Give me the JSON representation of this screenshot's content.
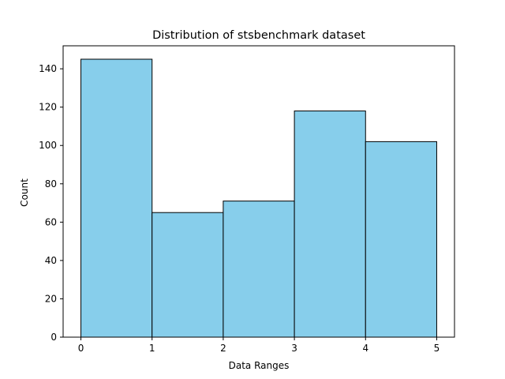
{
  "chart_data": {
    "type": "bar",
    "title": "Distribution of stsbenchmark dataset",
    "xlabel": "Data Ranges",
    "ylabel": "Count",
    "bins": [
      {
        "start": 0,
        "end": 1,
        "value": 145
      },
      {
        "start": 1,
        "end": 2,
        "value": 65
      },
      {
        "start": 2,
        "end": 3,
        "value": 71
      },
      {
        "start": 3,
        "end": 4,
        "value": 118
      },
      {
        "start": 4,
        "end": 5,
        "value": 102
      }
    ],
    "xlim": [
      -0.25,
      5.25
    ],
    "ylim": [
      0,
      152
    ],
    "xticks": [
      0,
      1,
      2,
      3,
      4,
      5
    ],
    "yticks": [
      0,
      20,
      40,
      60,
      80,
      100,
      120,
      140
    ],
    "grid": false,
    "legend": "none",
    "colors": {
      "bar_fill": "#87ceeb",
      "bar_edge": "#000000",
      "axis": "#000000"
    }
  }
}
